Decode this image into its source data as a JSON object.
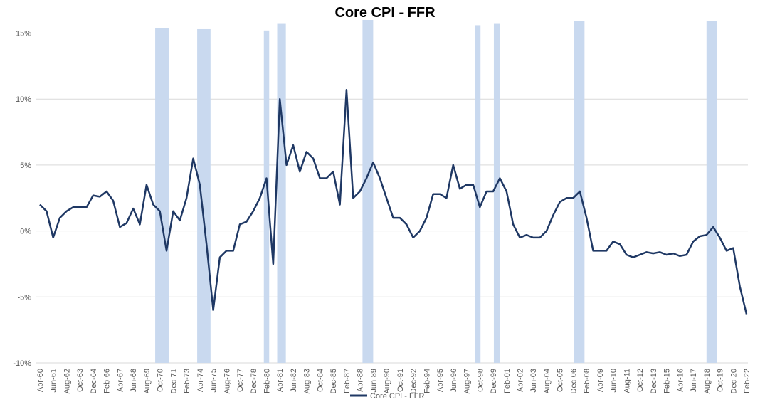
{
  "chart_data": {
    "type": "line",
    "title": "Core CPI - FFR",
    "categories": [
      "Apr-60",
      null,
      "Jun-61",
      null,
      "Aug-62",
      null,
      "Oct-63",
      null,
      "Dec-64",
      null,
      "Feb-66",
      null,
      "Apr-67",
      null,
      "Jun-68",
      null,
      "Aug-69",
      null,
      "Oct-70",
      null,
      "Dec-71",
      null,
      "Feb-73",
      null,
      "Apr-74",
      null,
      "Jun-75",
      null,
      "Aug-76",
      null,
      "Oct-77",
      null,
      "Dec-78",
      null,
      "Feb-80",
      null,
      "Apr-81",
      null,
      "Jun-82",
      null,
      "Aug-83",
      null,
      "Oct-84",
      null,
      "Dec-85",
      null,
      "Feb-87",
      null,
      "Apr-88",
      null,
      "Jun-89",
      null,
      "Aug-90",
      null,
      "Oct-91",
      null,
      "Dec-92",
      null,
      "Feb-94",
      null,
      "Apr-95",
      null,
      "Jun-96",
      null,
      "Aug-97",
      null,
      "Oct-98",
      null,
      "Dec-99",
      null,
      "Feb-01",
      null,
      "Apr-02",
      null,
      "Jun-03",
      null,
      "Aug-04",
      null,
      "Oct-05",
      null,
      "Dec-06",
      null,
      "Feb-08",
      null,
      "Apr-09",
      null,
      "Jun-10",
      null,
      "Aug-11",
      null,
      "Oct-12",
      null,
      "Dec-13",
      null,
      "Feb-15",
      null,
      "Apr-16",
      null,
      "Jun-17",
      null,
      "Aug-18",
      null,
      "Oct-19",
      null,
      "Dec-20",
      null,
      "Feb-22"
    ],
    "series": [
      {
        "name": "Core CPI - FFR",
        "color": "#1f3864",
        "values": [
          2.0,
          1.5,
          -0.5,
          1.0,
          1.5,
          1.8,
          1.8,
          1.8,
          2.7,
          2.6,
          3.0,
          2.3,
          0.3,
          0.6,
          1.7,
          0.5,
          3.5,
          2.0,
          1.5,
          -1.5,
          1.5,
          0.8,
          2.5,
          5.5,
          3.5,
          -1.0,
          -6.0,
          -2.0,
          -1.5,
          -1.5,
          0.5,
          0.7,
          1.5,
          2.5,
          4.0,
          -2.5,
          10.0,
          5.0,
          6.5,
          4.5,
          6.0,
          5.5,
          4.0,
          4.0,
          4.5,
          2.0,
          10.7,
          2.5,
          3.0,
          4.0,
          5.2,
          4.0,
          2.5,
          1.0,
          1.0,
          0.5,
          -0.5,
          0.0,
          1.0,
          2.8,
          2.8,
          2.5,
          5.0,
          3.2,
          3.5,
          3.5,
          1.8,
          3.0,
          3.0,
          4.0,
          3.0,
          0.5,
          -0.5,
          -0.3,
          -0.5,
          -0.5,
          0.0,
          1.2,
          2.2,
          2.5,
          2.5,
          3.0,
          1.0,
          -1.5,
          -1.5,
          -1.5,
          -0.8,
          -1.0,
          -1.8,
          -2.0,
          -1.8,
          -1.6,
          -1.7,
          -1.6,
          -1.8,
          -1.7,
          -1.9,
          -1.8,
          -0.8,
          -0.4,
          -0.3,
          0.3,
          -0.5,
          -1.5,
          -1.3,
          -4.2,
          -6.3
        ]
      }
    ],
    "recession_bands": {
      "color": "#c9d9ef",
      "from": [
        17.3,
        23.6,
        33.6,
        35.6,
        48.4,
        65.3,
        68.1,
        80.1,
        100.0
      ],
      "to": [
        19.4,
        25.6,
        34.4,
        36.9,
        50.0,
        66.1,
        69.0,
        81.7,
        101.6
      ],
      "values": [
        15.4,
        15.3,
        15.2,
        15.7,
        16.0,
        15.6,
        15.7,
        15.9,
        15.9
      ]
    },
    "ylim": [
      -10,
      16
    ],
    "yticks": [
      {
        "value": -10,
        "label": "-10%"
      },
      {
        "value": -5,
        "label": "-5%"
      },
      {
        "value": 0,
        "label": "0%"
      },
      {
        "value": 5,
        "label": "5%"
      },
      {
        "value": 10,
        "label": "10%"
      },
      {
        "value": 15,
        "label": "15%"
      }
    ],
    "grid": true,
    "legend": "bottom"
  }
}
